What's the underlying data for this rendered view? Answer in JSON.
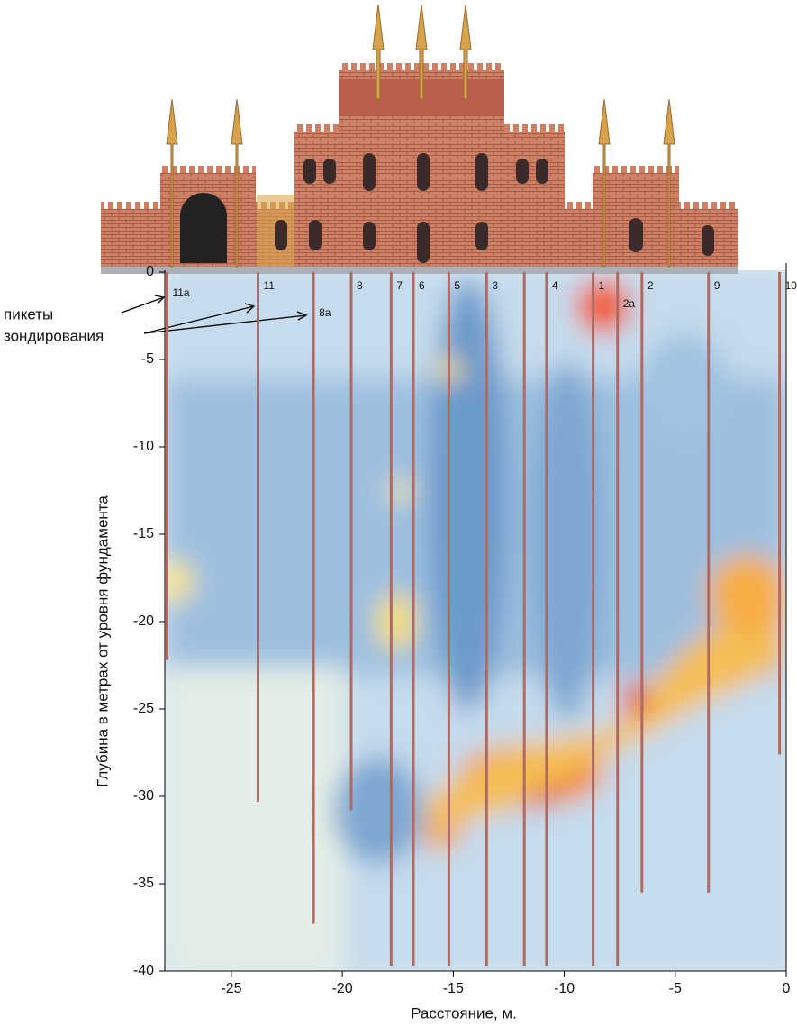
{
  "chart_data": {
    "type": "profile",
    "xlabel": "Расстояние, м.",
    "ylabel": "Глубина в метрах от уровня фундамента",
    "annotation": [
      "пикеты",
      "зондирования"
    ],
    "xlim": [
      -28,
      0
    ],
    "ylim": [
      -40,
      0
    ],
    "xticks": [
      -25,
      -20,
      -15,
      -10,
      -5,
      0
    ],
    "yticks": [
      0,
      -5,
      -10,
      -15,
      -20,
      -25,
      -30,
      -35,
      -40
    ],
    "color": "#b06a62",
    "probes": {
      "labels": [
        "11a",
        "11",
        "8a",
        "8",
        "7",
        "6",
        "5",
        "3",
        null,
        "4",
        "1",
        "2a",
        "2",
        "9",
        "10"
      ],
      "x": [
        -27.9,
        -23.8,
        -21.3,
        -19.6,
        -17.8,
        -16.8,
        -15.2,
        -13.5,
        -11.8,
        -10.8,
        -8.7,
        -7.6,
        -6.5,
        -3.5,
        -0.3
      ],
      "depth": [
        -22.2,
        -30.3,
        -37.3,
        -30.8,
        -39.7,
        -39.7,
        -39.7,
        -39.7,
        -39.7,
        -39.7,
        -39.7,
        -39.7,
        -35.5,
        -35.5,
        -27.6
      ]
    }
  }
}
